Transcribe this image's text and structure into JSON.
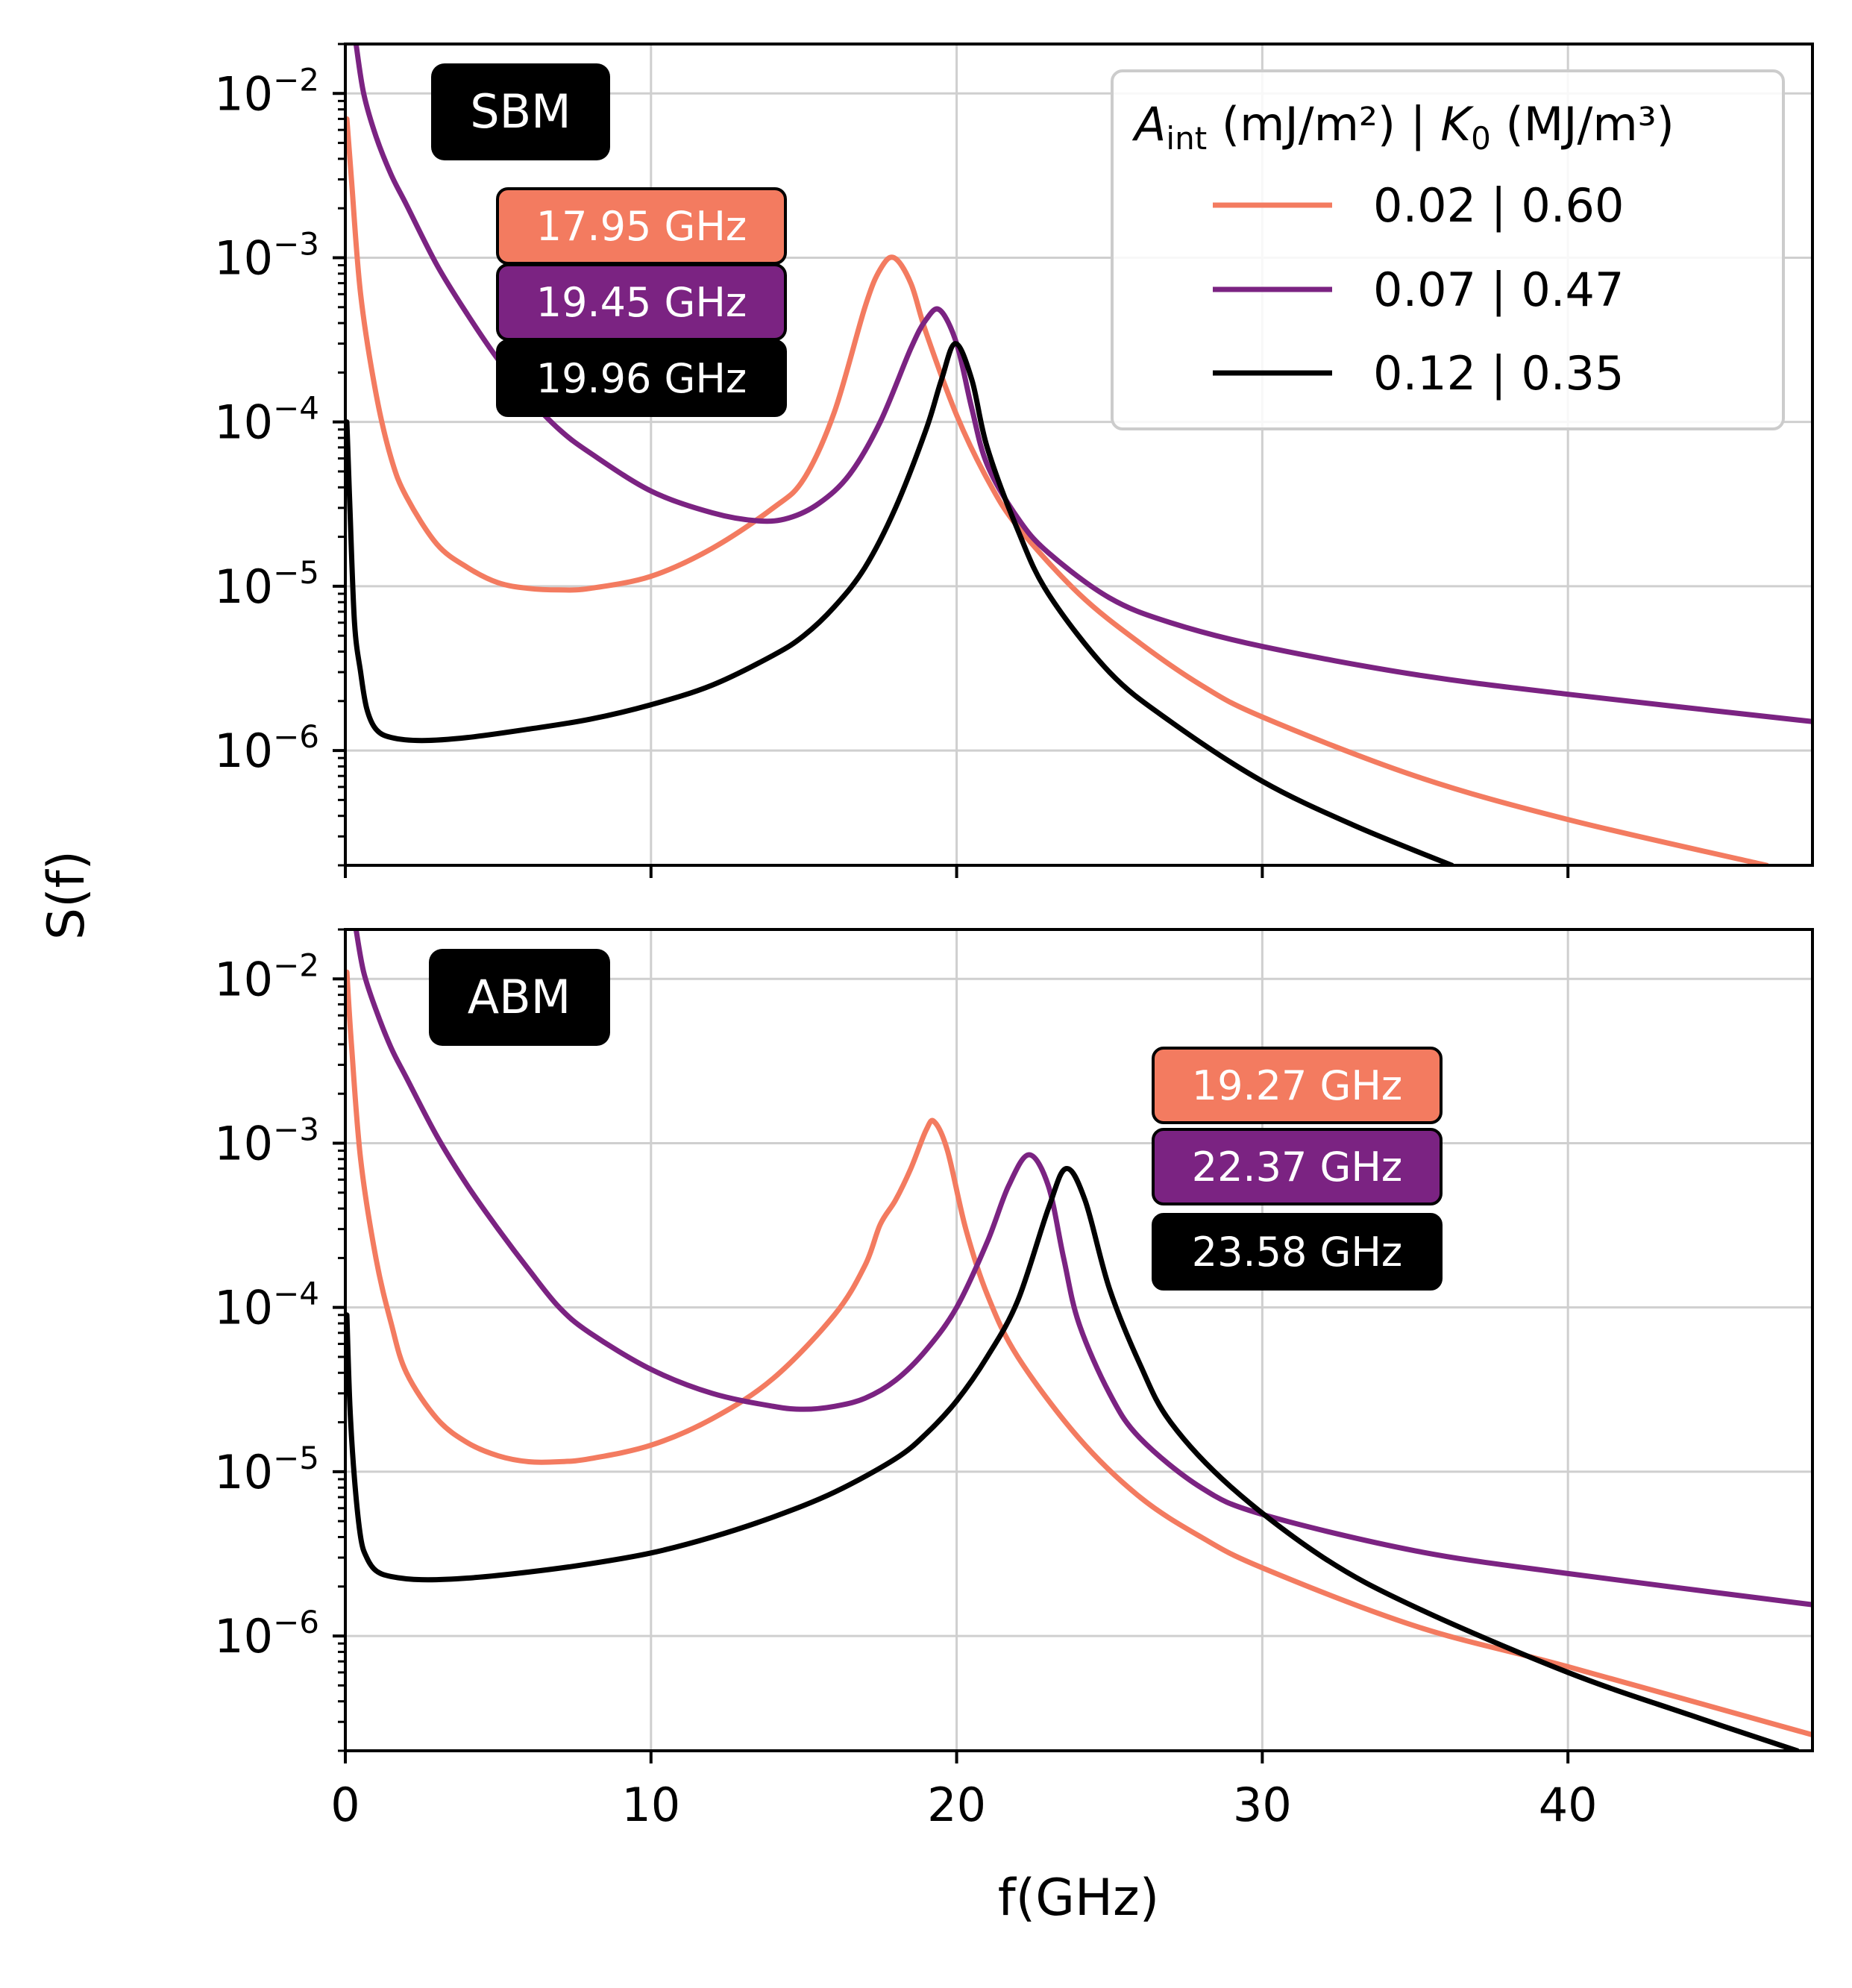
{
  "chart_data": {
    "type": "line",
    "xlabel": "f(GHz)",
    "ylabel": "S(f)",
    "xlim": [
      0,
      48
    ],
    "ylim": [
      2e-07,
      0.02
    ],
    "yscale": "log",
    "x_ticks": [
      0,
      10,
      20,
      30,
      40
    ],
    "x_tick_labels": [
      "0",
      "10",
      "20",
      "30",
      "40"
    ],
    "y_ticks": [
      1e-06,
      1e-05,
      0.0001,
      0.001,
      0.01
    ],
    "y_tick_labels": [
      {
        "base": "10",
        "exp": "−6"
      },
      {
        "base": "10",
        "exp": "−5"
      },
      {
        "base": "10",
        "exp": "−4"
      },
      {
        "base": "10",
        "exp": "−3"
      },
      {
        "base": "10",
        "exp": "−2"
      }
    ],
    "grid": true,
    "legend": {
      "placement": "top-right",
      "title_main": "A",
      "title_sub": "int",
      "title_mid": " (mJ/m²) | ",
      "title_k": "K",
      "title_k_sub": "0",
      "title_end": " (MJ/m³)",
      "entries": [
        "0.02 | 0.60",
        "0.07 | 0.47",
        "0.12 | 0.35"
      ]
    },
    "series_colors": [
      "#f37b60",
      "#7b2382",
      "#000000"
    ],
    "panels": [
      {
        "name": "SBM",
        "peak_labels": [
          "17.95 GHz",
          "19.45 GHz",
          "19.96 GHz"
        ],
        "series": [
          {
            "name": "0.02 | 0.60",
            "peak": 17.95,
            "x": [
              0.05,
              0.2,
              0.5,
              1,
              1.5,
              2,
              3,
              4,
              5,
              6,
              7,
              8,
              10,
              12,
              14,
              15,
              16,
              17,
              17.5,
              17.95,
              18.5,
              19,
              20,
              21,
              22,
              24,
              26,
              28,
              30,
              35,
              40,
              46.5
            ],
            "values": [
              0.007,
              0.003,
              0.0006,
              0.00015,
              6e-05,
              3.5e-05,
              1.8e-05,
              1.3e-05,
              1.05e-05,
              9.7e-06,
              9.5e-06,
              9.7e-06,
              1.15e-05,
              1.7e-05,
              3e-05,
              4.5e-05,
              0.000115,
              0.0005,
              0.00085,
              0.001,
              0.0007,
              0.00035,
              0.00011,
              4.5e-05,
              2.3e-05,
              9e-06,
              4.5e-06,
              2.5e-06,
              1.6e-06,
              7e-07,
              3.8e-07,
              2e-07
            ]
          },
          {
            "name": "0.07 | 0.47",
            "peak": 19.45,
            "x": [
              0.35,
              0.6,
              1,
              1.5,
              2,
              3,
              4,
              5,
              6,
              7,
              8,
              10,
              12,
              13.5,
              14.5,
              15.5,
              16.5,
              17.5,
              18.5,
              19,
              19.45,
              20,
              20.5,
              21,
              22,
              23,
              25,
              27,
              30,
              35,
              40,
              48
            ],
            "values": [
              0.02,
              0.01,
              0.0055,
              0.0032,
              0.0021,
              0.0009,
              0.00045,
              0.00024,
              0.00014,
              9e-05,
              6.5e-05,
              3.8e-05,
              2.8e-05,
              2.5e-05,
              2.6e-05,
              3.2e-05,
              4.8e-05,
              0.0001,
              0.00028,
              0.00042,
              0.00048,
              0.0003,
              0.00012,
              5.5e-05,
              2.6e-05,
              1.6e-05,
              8.5e-06,
              6e-06,
              4.3e-06,
              2.9e-06,
              2.2e-06,
              1.5e-06
            ]
          },
          {
            "name": "0.12 | 0.35",
            "peak": 19.96,
            "x": [
              0.05,
              0.15,
              0.3,
              0.5,
              0.7,
              1,
              1.5,
              2.5,
              4,
              6,
              8,
              10,
              12,
              14,
              15,
              16,
              17,
              18,
              19,
              19.5,
              19.96,
              20.5,
              21,
              22,
              23,
              25,
              27,
              30,
              33,
              36.2
            ],
            "values": [
              0.0001,
              3e-05,
              6e-06,
              3e-06,
              1.8e-06,
              1.35e-06,
              1.2e-06,
              1.15e-06,
              1.2e-06,
              1.35e-06,
              1.55e-06,
              1.9e-06,
              2.5e-06,
              3.8e-06,
              5e-06,
              7.5e-06,
              1.3e-05,
              3e-05,
              9e-05,
              0.00018,
              0.0003,
              0.00018,
              7e-05,
              2.2e-05,
              9e-06,
              3e-06,
              1.5e-06,
              6.5e-07,
              3.5e-07,
              2e-07
            ]
          }
        ]
      },
      {
        "name": "ABM",
        "peak_labels": [
          "19.27 GHz",
          "22.37 GHz",
          "23.58 GHz"
        ],
        "series": [
          {
            "name": "0.02 | 0.60",
            "peak": 19.27,
            "x": [
              0.05,
              0.2,
              0.5,
              1,
              1.5,
              2,
              3,
              4,
              5,
              6,
              7,
              8,
              10,
              12,
              14,
              16,
              17,
              17.5,
              18,
              18.5,
              19,
              19.27,
              19.7,
              20.3,
              21,
              22,
              24,
              26,
              28,
              30,
              35,
              40,
              48
            ],
            "values": [
              0.011,
              0.004,
              0.0008,
              0.0002,
              8e-05,
              4e-05,
              2.1e-05,
              1.5e-05,
              1.25e-05,
              1.15e-05,
              1.15e-05,
              1.2e-05,
              1.45e-05,
              2.1e-05,
              3.7e-05,
              9e-05,
              0.00018,
              0.00032,
              0.00045,
              0.0007,
              0.0012,
              0.00135,
              0.0009,
              0.0003,
              0.00012,
              5e-05,
              1.6e-05,
              7e-06,
              4e-06,
              2.6e-06,
              1.15e-06,
              6.5e-07,
              2.5e-07
            ]
          },
          {
            "name": "0.07 | 0.47",
            "peak": 22.37,
            "x": [
              0.35,
              0.6,
              1,
              1.5,
              2,
              3,
              4,
              5,
              6,
              7,
              8,
              10,
              12,
              14,
              15,
              16,
              17,
              18,
              19,
              20,
              21,
              21.7,
              22.37,
              23,
              23.5,
              24,
              25,
              26,
              28,
              30,
              35,
              40,
              48
            ],
            "values": [
              0.02,
              0.011,
              0.0065,
              0.0038,
              0.0025,
              0.0011,
              0.00055,
              0.0003,
              0.00017,
              0.0001,
              7e-05,
              4.2e-05,
              3e-05,
              2.5e-05,
              2.4e-05,
              2.5e-05,
              2.8e-05,
              3.6e-05,
              5.5e-05,
              0.0001,
              0.00025,
              0.00055,
              0.00085,
              0.00055,
              0.0002,
              8e-05,
              3e-05,
              1.6e-05,
              8e-06,
              5.5e-06,
              3.3e-06,
              2.4e-06,
              1.55e-06
            ]
          },
          {
            "name": "0.12 | 0.35",
            "peak": 23.58,
            "x": [
              0.05,
              0.15,
              0.3,
              0.5,
              0.7,
              1,
              1.5,
              2.5,
              4,
              6,
              8,
              10,
              12,
              14,
              16,
              18,
              19,
              20,
              21,
              22,
              23,
              23.58,
              24.2,
              25,
              26,
              27,
              29,
              32,
              35,
              40,
              44,
              47.5
            ],
            "values": [
              9e-05,
              2.5e-05,
              9e-06,
              4e-06,
              3e-06,
              2.5e-06,
              2.3e-06,
              2.2e-06,
              2.25e-06,
              2.45e-06,
              2.75e-06,
              3.2e-06,
              4e-06,
              5.3e-06,
              7.5e-06,
              1.2e-05,
              1.7e-05,
              2.7e-05,
              5e-05,
              0.00011,
              0.0004,
              0.0007,
              0.00045,
              0.00013,
              4.5e-05,
              2e-05,
              8e-06,
              3e-06,
              1.5e-06,
              6e-07,
              3.3e-07,
              2e-07
            ]
          }
        ]
      }
    ]
  }
}
